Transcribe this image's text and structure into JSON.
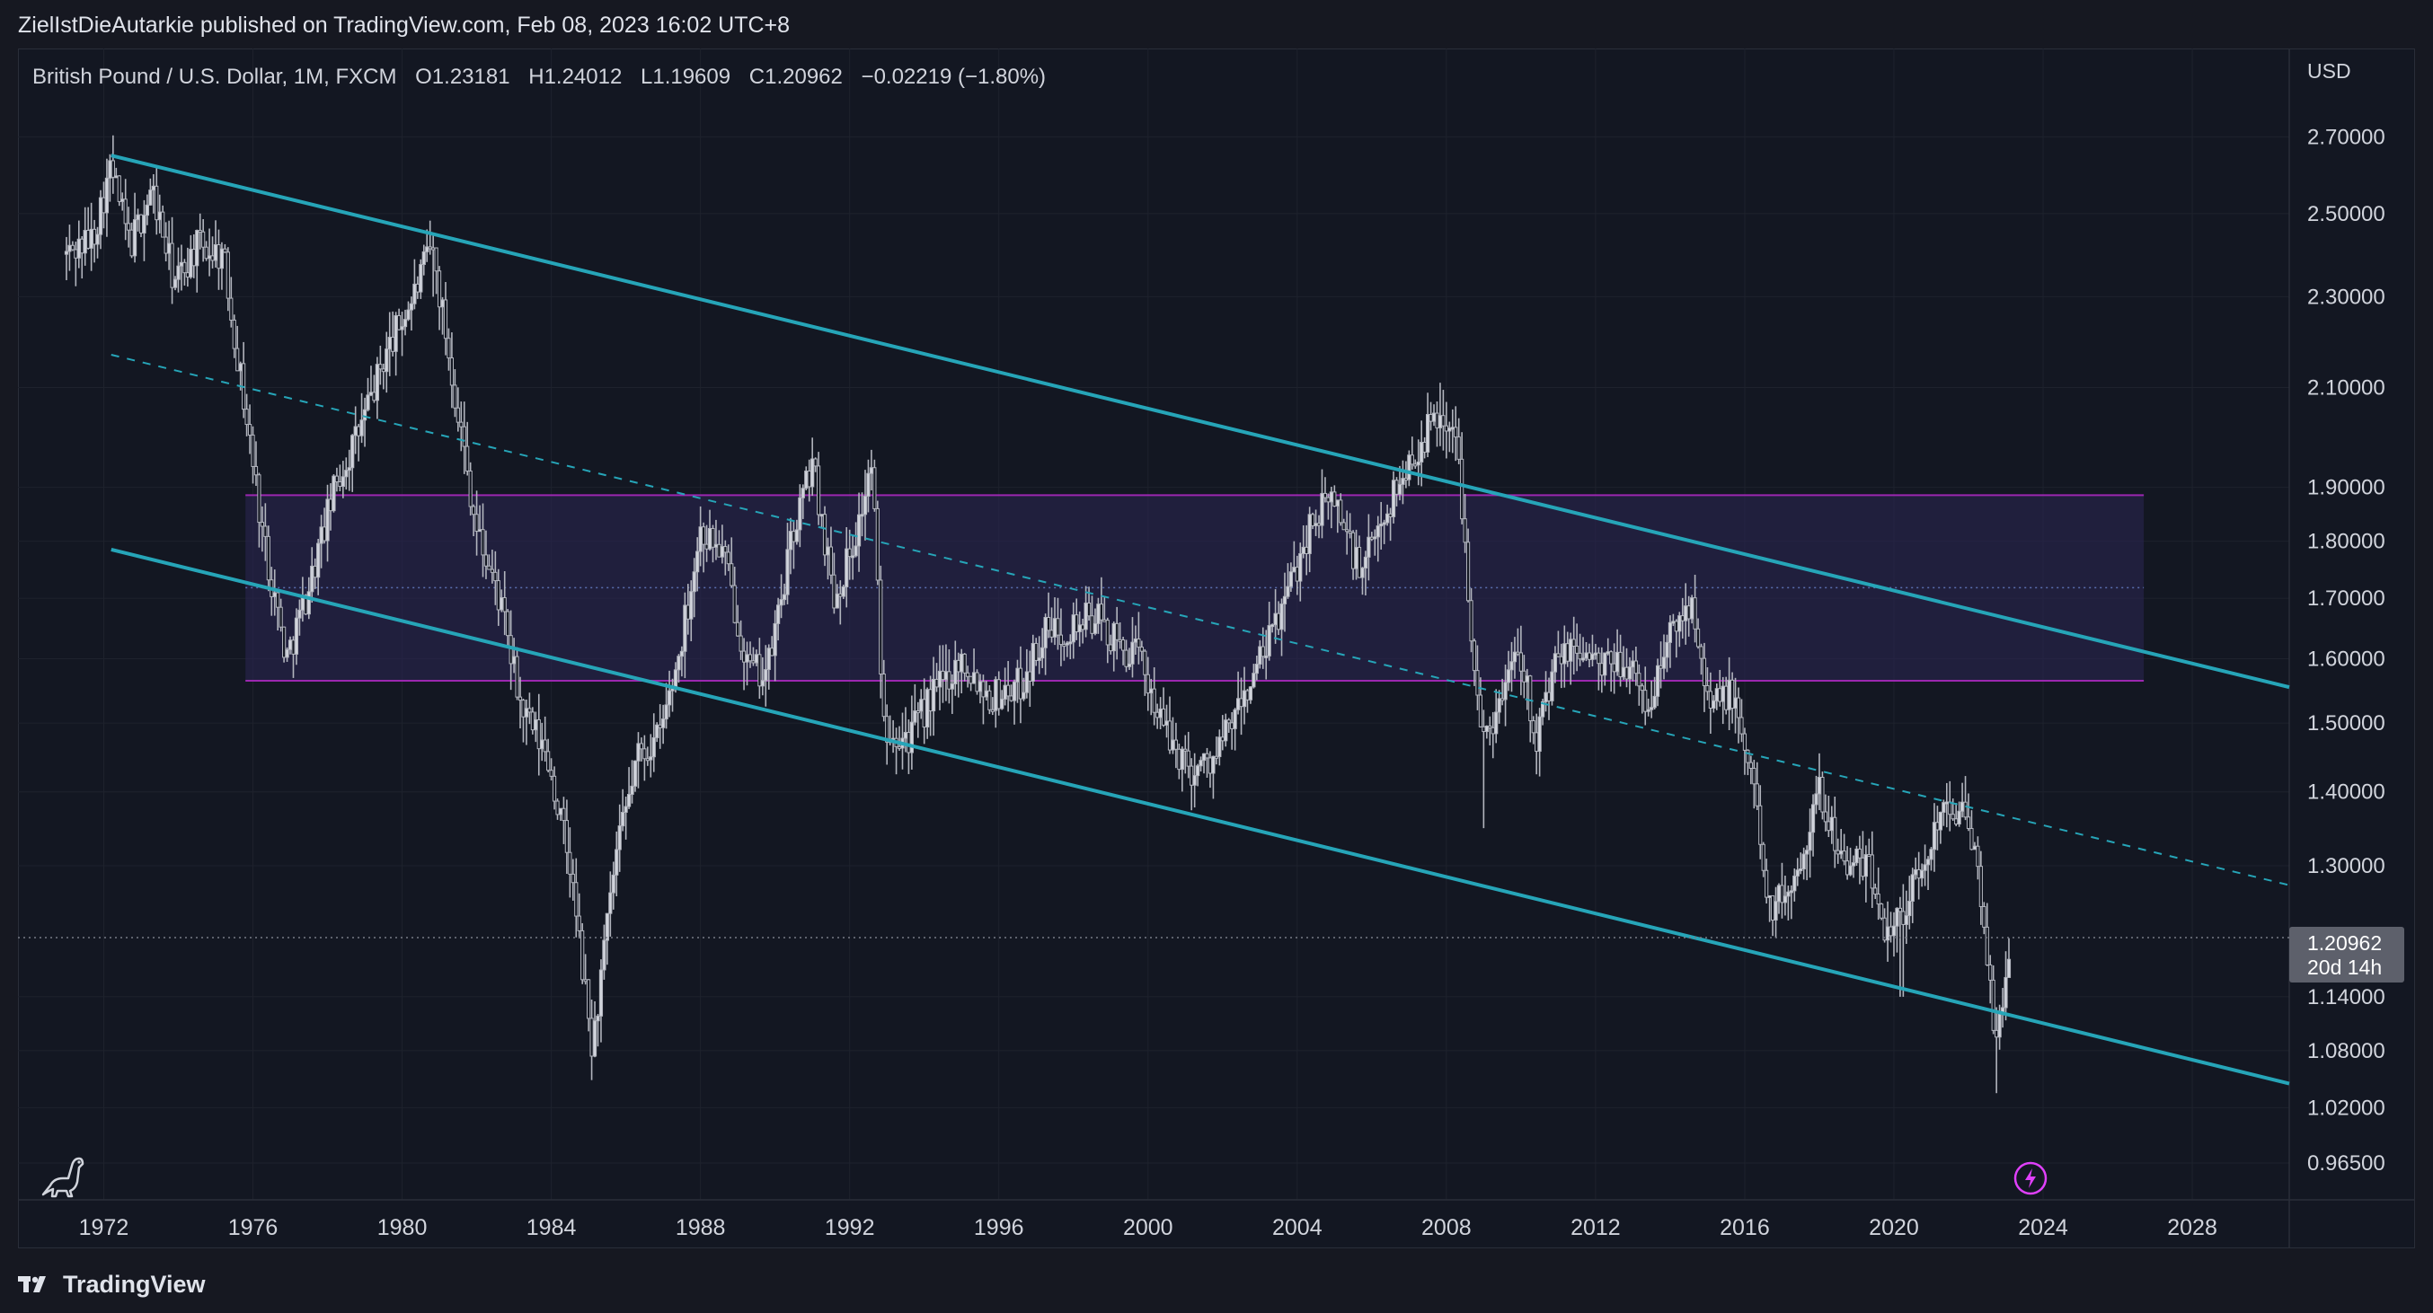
{
  "header": {
    "publisher_line": "ZielIstDieAutarkie published on TradingView.com, Feb 08, 2023 16:02 UTC+8"
  },
  "legend": {
    "symbol": "British Pound / U.S. Dollar, 1M, FXCM",
    "open": "O1.23181",
    "high": "H1.24012",
    "low": "L1.19609",
    "close": "C1.20962",
    "change": "−0.02219 (−1.80%)"
  },
  "price_axis": {
    "currency": "USD",
    "last_price": "1.20962",
    "countdown": "20d 14h"
  },
  "footer": {
    "brand": "TradingView",
    "logo_icon": "tradingview-logo-icon"
  },
  "icons": {
    "dino": "dinosaur-icon",
    "bolt": "lightning-icon"
  },
  "colors": {
    "background": "#131722",
    "candles": "#b2b5be",
    "channel": "#26a5b8",
    "zone_border": "#9c27b0",
    "zone_fill": "#2a2450",
    "grid": "#1e222d"
  },
  "chart_data": {
    "type": "candlestick",
    "title": "British Pound / U.S. Dollar, 1M, FXCM",
    "xlabel": "",
    "ylabel": "USD",
    "scale": "log",
    "ylim": [
      0.93,
      2.95
    ],
    "xlim": [
      1969.7,
      2030.6
    ],
    "x_ticks": [
      "1972",
      "1976",
      "1980",
      "1984",
      "1988",
      "1992",
      "1996",
      "2000",
      "2004",
      "2008",
      "2012",
      "2016",
      "2020",
      "2024",
      "2028"
    ],
    "y_ticks": [
      "2.70000",
      "2.50000",
      "2.30000",
      "2.10000",
      "1.90000",
      "1.80000",
      "1.70000",
      "1.60000",
      "1.50000",
      "1.40000",
      "1.30000",
      "1.14000",
      "1.08000",
      "1.02000",
      "0.96500"
    ],
    "price_path": [
      {
        "t": 1971.0,
        "v": 2.4
      },
      {
        "t": 1971.7,
        "v": 2.44
      },
      {
        "t": 1972.2,
        "v": 2.62
      },
      {
        "t": 1972.7,
        "v": 2.42
      },
      {
        "t": 1973.3,
        "v": 2.56
      },
      {
        "t": 1973.9,
        "v": 2.33
      },
      {
        "t": 1974.5,
        "v": 2.42
      },
      {
        "t": 1975.2,
        "v": 2.4
      },
      {
        "t": 1975.8,
        "v": 2.05
      },
      {
        "t": 1976.3,
        "v": 1.8
      },
      {
        "t": 1976.9,
        "v": 1.6
      },
      {
        "t": 1977.5,
        "v": 1.72
      },
      {
        "t": 1978.2,
        "v": 1.9
      },
      {
        "t": 1978.9,
        "v": 2.02
      },
      {
        "t": 1979.6,
        "v": 2.18
      },
      {
        "t": 1980.3,
        "v": 2.3
      },
      {
        "t": 1980.8,
        "v": 2.42
      },
      {
        "t": 1981.5,
        "v": 2.05
      },
      {
        "t": 1982.0,
        "v": 1.82
      },
      {
        "t": 1982.6,
        "v": 1.7
      },
      {
        "t": 1983.2,
        "v": 1.52
      },
      {
        "t": 1983.9,
        "v": 1.45
      },
      {
        "t": 1984.5,
        "v": 1.3
      },
      {
        "t": 1985.1,
        "v": 1.08
      },
      {
        "t": 1985.7,
        "v": 1.3
      },
      {
        "t": 1986.3,
        "v": 1.45
      },
      {
        "t": 1986.9,
        "v": 1.48
      },
      {
        "t": 1987.4,
        "v": 1.6
      },
      {
        "t": 1988.0,
        "v": 1.82
      },
      {
        "t": 1988.6,
        "v": 1.78
      },
      {
        "t": 1989.3,
        "v": 1.58
      },
      {
        "t": 1989.8,
        "v": 1.58
      },
      {
        "t": 1990.5,
        "v": 1.82
      },
      {
        "t": 1991.0,
        "v": 1.95
      },
      {
        "t": 1991.6,
        "v": 1.7
      },
      {
        "t": 1992.2,
        "v": 1.82
      },
      {
        "t": 1992.6,
        "v": 1.95
      },
      {
        "t": 1992.9,
        "v": 1.5
      },
      {
        "t": 1993.6,
        "v": 1.48
      },
      {
        "t": 1994.3,
        "v": 1.55
      },
      {
        "t": 1995.0,
        "v": 1.6
      },
      {
        "t": 1995.8,
        "v": 1.54
      },
      {
        "t": 1996.6,
        "v": 1.56
      },
      {
        "t": 1997.2,
        "v": 1.64
      },
      {
        "t": 1997.8,
        "v": 1.65
      },
      {
        "t": 1998.6,
        "v": 1.67
      },
      {
        "t": 1999.2,
        "v": 1.62
      },
      {
        "t": 1999.8,
        "v": 1.6
      },
      {
        "t": 2000.5,
        "v": 1.48
      },
      {
        "t": 2001.2,
        "v": 1.43
      },
      {
        "t": 2001.8,
        "v": 1.45
      },
      {
        "t": 2002.5,
        "v": 1.53
      },
      {
        "t": 2003.2,
        "v": 1.62
      },
      {
        "t": 2003.8,
        "v": 1.72
      },
      {
        "t": 2004.4,
        "v": 1.84
      },
      {
        "t": 2005.0,
        "v": 1.88
      },
      {
        "t": 2005.7,
        "v": 1.74
      },
      {
        "t": 2006.4,
        "v": 1.86
      },
      {
        "t": 2007.1,
        "v": 1.96
      },
      {
        "t": 2007.8,
        "v": 2.05
      },
      {
        "t": 2008.3,
        "v": 1.98
      },
      {
        "t": 2008.9,
        "v": 1.48
      },
      {
        "t": 2009.4,
        "v": 1.52
      },
      {
        "t": 2009.9,
        "v": 1.64
      },
      {
        "t": 2010.4,
        "v": 1.48
      },
      {
        "t": 2011.0,
        "v": 1.6
      },
      {
        "t": 2011.6,
        "v": 1.62
      },
      {
        "t": 2012.2,
        "v": 1.58
      },
      {
        "t": 2012.8,
        "v": 1.6
      },
      {
        "t": 2013.4,
        "v": 1.52
      },
      {
        "t": 2014.0,
        "v": 1.64
      },
      {
        "t": 2014.6,
        "v": 1.7
      },
      {
        "t": 2015.1,
        "v": 1.52
      },
      {
        "t": 2015.6,
        "v": 1.55
      },
      {
        "t": 2016.2,
        "v": 1.42
      },
      {
        "t": 2016.7,
        "v": 1.24
      },
      {
        "t": 2017.3,
        "v": 1.28
      },
      {
        "t": 2018.0,
        "v": 1.4
      },
      {
        "t": 2018.7,
        "v": 1.3
      },
      {
        "t": 2019.3,
        "v": 1.3
      },
      {
        "t": 2019.8,
        "v": 1.22
      },
      {
        "t": 2020.2,
        "v": 1.24
      },
      {
        "t": 2020.8,
        "v": 1.3
      },
      {
        "t": 2021.4,
        "v": 1.4
      },
      {
        "t": 2021.9,
        "v": 1.36
      },
      {
        "t": 2022.3,
        "v": 1.28
      },
      {
        "t": 2022.75,
        "v": 1.08
      },
      {
        "t": 2023.1,
        "v": 1.21
      }
    ],
    "price_extremes": [
      {
        "t": 1972.2,
        "high": 2.65,
        "low": 2.55
      },
      {
        "t": 1980.8,
        "high": 2.45,
        "low": 2.3
      },
      {
        "t": 1985.1,
        "high": 1.12,
        "low": 1.05
      },
      {
        "t": 2007.8,
        "high": 2.11,
        "low": 1.98
      },
      {
        "t": 2009.0,
        "high": 1.52,
        "low": 1.35
      },
      {
        "t": 2020.2,
        "high": 1.26,
        "low": 1.14
      },
      {
        "t": 2022.75,
        "high": 1.12,
        "low": 1.035
      }
    ],
    "last_close": 1.20962,
    "channel_upper": {
      "t1": 1972.2,
      "v1": 2.65,
      "t2": 2030.6,
      "v2": 1.555
    },
    "channel_lower": {
      "t1": 1972.2,
      "v1": 1.785,
      "t2": 2030.6,
      "v2": 1.045
    },
    "channel_mid": {
      "t1": 1972.2,
      "v1": 2.17,
      "t2": 2030.6,
      "v2": 1.275
    },
    "zone": {
      "t1": 1975.8,
      "t2": 2026.7,
      "top": 1.885,
      "bottom": 1.565,
      "mid": 1.718
    }
  }
}
